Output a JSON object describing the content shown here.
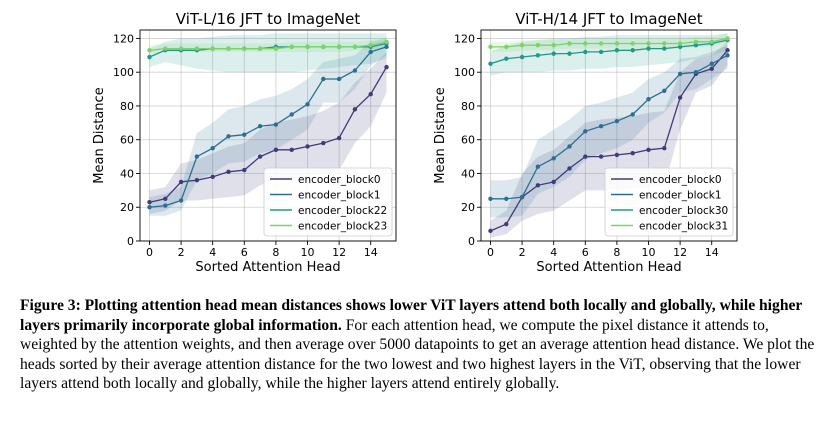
{
  "chart_data": [
    {
      "type": "line",
      "title": "ViT-L/16 JFT to ImageNet",
      "xlabel": "Sorted Attention Head",
      "ylabel": "Mean Distance",
      "xlim": [
        -0.6,
        15.6
      ],
      "ylim": [
        0,
        125
      ],
      "xticks": [
        0,
        2,
        4,
        6,
        8,
        10,
        12,
        14
      ],
      "yticks": [
        0,
        20,
        40,
        60,
        80,
        100,
        120
      ],
      "grid": true,
      "legend_position": "lower-right",
      "x": [
        0,
        1,
        2,
        3,
        4,
        5,
        6,
        7,
        8,
        9,
        10,
        11,
        12,
        13,
        14,
        15
      ],
      "series": [
        {
          "name": "encoder_block0",
          "color": "#3e3c7a",
          "values": [
            23,
            25,
            35,
            36,
            38,
            41,
            42,
            50,
            54,
            54,
            56,
            58,
            61,
            78,
            87,
            103
          ],
          "band": [
            [
              16,
              30
            ],
            [
              18,
              32
            ],
            [
              24,
              46
            ],
            [
              24,
              48
            ],
            [
              25,
              52
            ],
            [
              26,
              56
            ],
            [
              27,
              58
            ],
            [
              33,
              66
            ],
            [
              36,
              70
            ],
            [
              36,
              72
            ],
            [
              38,
              74
            ],
            [
              40,
              77
            ],
            [
              42,
              82
            ],
            [
              58,
              94
            ],
            [
              68,
              102
            ],
            [
              88,
              112
            ]
          ]
        },
        {
          "name": "encoder_block1",
          "color": "#2c6f93",
          "values": [
            20,
            21,
            24,
            50,
            55,
            62,
            63,
            68,
            69,
            75,
            81,
            96,
            96,
            101,
            112,
            115
          ],
          "band": [
            [
              15,
              26
            ],
            [
              15,
              28
            ],
            [
              18,
              32
            ],
            [
              36,
              64
            ],
            [
              40,
              70
            ],
            [
              46,
              78
            ],
            [
              47,
              80
            ],
            [
              52,
              84
            ],
            [
              54,
              86
            ],
            [
              60,
              90
            ],
            [
              66,
              96
            ],
            [
              82,
              106
            ],
            [
              82,
              108
            ],
            [
              90,
              110
            ],
            [
              104,
              118
            ],
            [
              110,
              120
            ]
          ]
        },
        {
          "name": "encoder_block22",
          "color": "#22998a",
          "values": [
            109,
            113,
            113,
            113,
            114,
            114,
            114,
            114,
            115,
            115,
            115,
            115,
            115,
            115,
            115,
            117
          ],
          "band": [
            [
              103,
              114
            ],
            [
              106,
              118
            ],
            [
              104,
              120
            ],
            [
              102,
              120
            ],
            [
              101,
              121
            ],
            [
              100,
              122
            ],
            [
              100,
              122
            ],
            [
              100,
              122
            ],
            [
              100,
              123
            ],
            [
              100,
              123
            ],
            [
              101,
              123
            ],
            [
              102,
              123
            ],
            [
              103,
              123
            ],
            [
              104,
              123
            ],
            [
              105,
              123
            ],
            [
              108,
              123
            ]
          ]
        },
        {
          "name": "encoder_block23",
          "color": "#7ed26a",
          "values": [
            113,
            114,
            114,
            114,
            114,
            114,
            114,
            114,
            114,
            115,
            115,
            115,
            115,
            115,
            116,
            118
          ],
          "band": [
            [
              111,
              116
            ],
            [
              112,
              117
            ],
            [
              112,
              117
            ],
            [
              112,
              117
            ],
            [
              112,
              117
            ],
            [
              112,
              117
            ],
            [
              112,
              117
            ],
            [
              112,
              117
            ],
            [
              112,
              117
            ],
            [
              112,
              118
            ],
            [
              112,
              118
            ],
            [
              112,
              118
            ],
            [
              112,
              118
            ],
            [
              113,
              118
            ],
            [
              113,
              119
            ],
            [
              115,
              121
            ]
          ]
        }
      ]
    },
    {
      "type": "line",
      "title": "ViT-H/14 JFT to ImageNet",
      "xlabel": "Sorted Attention Head",
      "ylabel": "Mean Distance",
      "xlim": [
        -0.6,
        15.6
      ],
      "ylim": [
        0,
        125
      ],
      "xticks": [
        0,
        2,
        4,
        6,
        8,
        10,
        12,
        14
      ],
      "yticks": [
        0,
        20,
        40,
        60,
        80,
        100,
        120
      ],
      "grid": true,
      "legend_position": "lower-right",
      "x": [
        0,
        1,
        2,
        3,
        4,
        5,
        6,
        7,
        8,
        9,
        10,
        11,
        12,
        13,
        14,
        15
      ],
      "series": [
        {
          "name": "encoder_block0",
          "color": "#3e3c7a",
          "values": [
            6,
            10,
            26,
            33,
            35,
            43,
            50,
            50,
            51,
            52,
            54,
            55,
            85,
            99,
            102,
            113
          ],
          "band": [
            [
              2,
              12
            ],
            [
              4,
              18
            ],
            [
              12,
              40
            ],
            [
              16,
              50
            ],
            [
              18,
              54
            ],
            [
              24,
              62
            ],
            [
              30,
              70
            ],
            [
              30,
              72
            ],
            [
              30,
              73
            ],
            [
              31,
              74
            ],
            [
              32,
              76
            ],
            [
              33,
              77
            ],
            [
              66,
              100
            ],
            [
              88,
              108
            ],
            [
              92,
              110
            ],
            [
              104,
              118
            ]
          ]
        },
        {
          "name": "encoder_block1",
          "color": "#2c6f93",
          "values": [
            25,
            25,
            26,
            44,
            49,
            56,
            65,
            68,
            71,
            75,
            84,
            89,
            99,
            100,
            105,
            110
          ],
          "band": [
            [
              14,
              36
            ],
            [
              14,
              36
            ],
            [
              15,
              38
            ],
            [
              28,
              60
            ],
            [
              32,
              66
            ],
            [
              38,
              72
            ],
            [
              48,
              80
            ],
            [
              52,
              82
            ],
            [
              55,
              85
            ],
            [
              60,
              88
            ],
            [
              70,
              96
            ],
            [
              76,
              100
            ],
            [
              88,
              108
            ],
            [
              90,
              109
            ],
            [
              96,
              112
            ],
            [
              102,
              116
            ]
          ]
        },
        {
          "name": "encoder_block30",
          "color": "#22998a",
          "values": [
            105,
            108,
            109,
            110,
            111,
            111,
            112,
            112,
            113,
            113,
            114,
            114,
            115,
            116,
            117,
            119
          ],
          "band": [
            [
              98,
              112
            ],
            [
              100,
              116
            ],
            [
              100,
              118
            ],
            [
              100,
              119
            ],
            [
              101,
              120
            ],
            [
              101,
              120
            ],
            [
              102,
              121
            ],
            [
              102,
              121
            ],
            [
              103,
              122
            ],
            [
              103,
              122
            ],
            [
              104,
              122
            ],
            [
              105,
              122
            ],
            [
              106,
              122
            ],
            [
              108,
              122
            ],
            [
              110,
              122
            ],
            [
              113,
              123
            ]
          ]
        },
        {
          "name": "encoder_block31",
          "color": "#7ed26a",
          "values": [
            115,
            115,
            116,
            116,
            116,
            117,
            117,
            117,
            117,
            117,
            117,
            117,
            117,
            118,
            118,
            120
          ],
          "band": [
            [
              112,
              118
            ],
            [
              112,
              118
            ],
            [
              113,
              119
            ],
            [
              113,
              119
            ],
            [
              113,
              119
            ],
            [
              114,
              120
            ],
            [
              114,
              120
            ],
            [
              114,
              120
            ],
            [
              114,
              120
            ],
            [
              114,
              120
            ],
            [
              114,
              120
            ],
            [
              114,
              120
            ],
            [
              114,
              120
            ],
            [
              115,
              121
            ],
            [
              115,
              121
            ],
            [
              117,
              123
            ]
          ]
        }
      ]
    }
  ],
  "caption": {
    "bold": "Figure 3: Plotting attention head mean distances shows lower ViT layers attend both locally and globally, while higher layers primarily incorporate global information.",
    "text": " For each attention head, we compute the pixel distance it attends to, weighted by the attention weights, and then average over 5000 datapoints to get an average attention head distance. We plot the heads sorted by their average attention distance for the two lowest and two highest layers in the ViT, observing that the lower layers attend both locally and globally, while the higher layers attend entirely globally."
  }
}
